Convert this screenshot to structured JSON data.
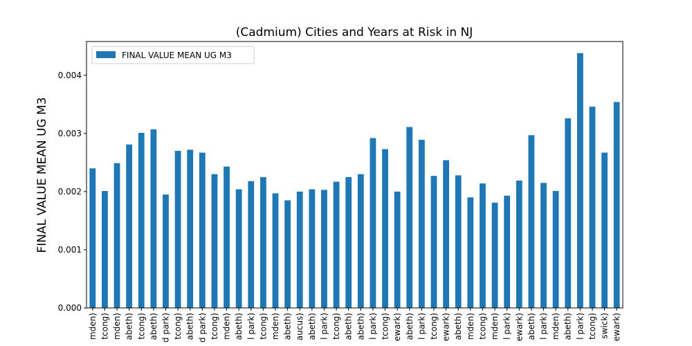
{
  "chart_data": {
    "type": "bar",
    "title": "(Cadmium) Cities and Years at Risk in NJ",
    "ylabel": "FINAL VALUE MEAN UG M3",
    "categories": [
      "mden)",
      "tcong)",
      "mden)",
      "abeth)",
      "tcong)",
      "abeth)",
      "d park)",
      "tcong)",
      "abeth)",
      "d park)",
      "tcong)",
      "mden)",
      "abeth)",
      "l park)",
      "tcong)",
      "mden)",
      "abeth)",
      "aucus)",
      "abeth)",
      "l park)",
      "tcong)",
      "abeth)",
      "abeth)",
      "l park)",
      "tcong)",
      "ewark)",
      "abeth)",
      "l park)",
      "tcong)",
      "ewark)",
      "abeth)",
      "mden)",
      "tcong)",
      "mden)",
      "l park)",
      "ewark)",
      "abeth)",
      "l park)",
      "mden)",
      "abeth)",
      "l park)",
      "tcong)",
      "swick)",
      "ewark)"
    ],
    "series": [
      {
        "name": "FINAL VALUE MEAN UG M3",
        "color": "#1f77b4",
        "values": [
          0.0024,
          0.00201,
          0.00249,
          0.00281,
          0.00301,
          0.00307,
          0.00195,
          0.0027,
          0.00272,
          0.00267,
          0.0023,
          0.00243,
          0.00204,
          0.00218,
          0.00225,
          0.00197,
          0.00185,
          0.002,
          0.00204,
          0.00203,
          0.00217,
          0.00225,
          0.0023,
          0.00292,
          0.00273,
          0.002,
          0.00311,
          0.00289,
          0.00227,
          0.00254,
          0.00228,
          0.0019,
          0.00214,
          0.00181,
          0.00193,
          0.00219,
          0.00297,
          0.00215,
          0.00201,
          0.00326,
          0.00438,
          0.00346,
          0.00267,
          0.00354
        ]
      }
    ],
    "ylim": [
      0,
      0.00458
    ],
    "yticks": [
      {
        "value": 0,
        "label": "0.000"
      },
      {
        "value": 0.001,
        "label": "0.001"
      },
      {
        "value": 0.002,
        "label": "0.002"
      },
      {
        "value": 0.003,
        "label": "0.003"
      },
      {
        "value": 0.004,
        "label": "0.004"
      }
    ],
    "legend": "upper left"
  }
}
